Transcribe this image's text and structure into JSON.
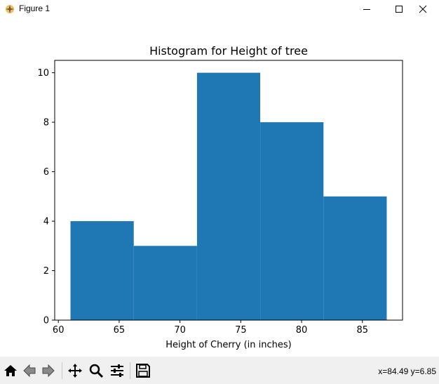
{
  "window": {
    "title": "Figure 1",
    "icons": [
      "matplotlib-icon",
      "minimize-icon",
      "maximize-icon",
      "close-icon"
    ]
  },
  "toolbar": {
    "buttons": [
      "home-icon",
      "back-icon",
      "forward-icon",
      "pan-icon",
      "zoom-icon",
      "configure-subplots-icon",
      "save-icon"
    ],
    "coords": "x=84.49 y=6.85"
  },
  "chart_data": {
    "type": "bar",
    "title": "Histogram for Height of tree",
    "xlabel": "Height of Cherry (in inches)",
    "ylabel": "",
    "bins": [
      {
        "x0": 61.0,
        "x1": 66.2,
        "count": 4
      },
      {
        "x0": 66.2,
        "x1": 71.4,
        "count": 3
      },
      {
        "x0": 71.4,
        "x1": 76.6,
        "count": 10
      },
      {
        "x0": 76.6,
        "x1": 81.8,
        "count": 8
      },
      {
        "x0": 81.8,
        "x1": 87.0,
        "count": 5
      }
    ],
    "xlim": [
      59.7,
      88.3
    ],
    "ylim": [
      0,
      10.5
    ],
    "xticks": [
      60,
      65,
      70,
      75,
      80,
      85
    ],
    "yticks": [
      0,
      2,
      4,
      6,
      8,
      10
    ],
    "bar_color": "#1f77b4",
    "grid": false
  }
}
